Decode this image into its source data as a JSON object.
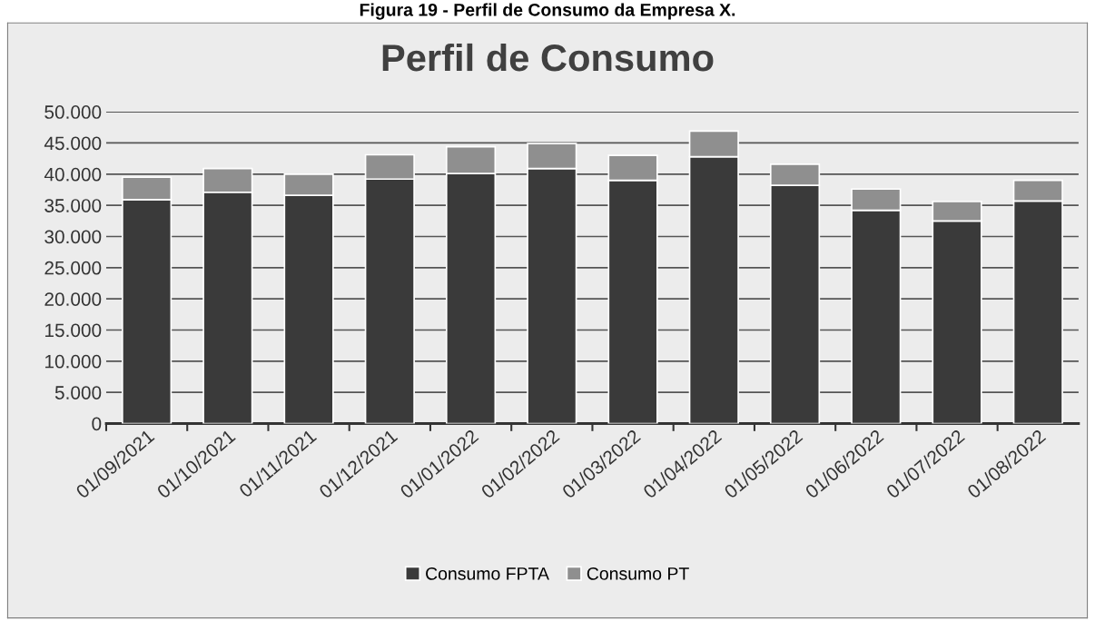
{
  "chart_data": {
    "type": "bar",
    "title": "Perfil de Consumo",
    "stacked": true,
    "annotations": [
      "Figura 19 - Perfil de Consumo da Empresa X."
    ],
    "categories": [
      "01/09/2021",
      "01/10/2021",
      "01/11/2021",
      "01/12/2021",
      "01/01/2022",
      "01/02/2022",
      "01/03/2022",
      "01/04/2022",
      "01/05/2022",
      "01/06/2022",
      "01/07/2022",
      "01/08/2022"
    ],
    "series": [
      {
        "name": "Consumo FPTA",
        "color": "#3a3a3a",
        "values": [
          35900,
          37100,
          36600,
          39200,
          40100,
          40900,
          39000,
          42800,
          38200,
          34200,
          32500,
          35700
        ]
      },
      {
        "name": "Consumo PT",
        "color": "#8f8f8f",
        "values": [
          3600,
          3800,
          3400,
          3900,
          4300,
          4000,
          4000,
          4100,
          3400,
          3400,
          3100,
          3300
        ]
      }
    ],
    "ylim": [
      0,
      50000
    ],
    "yticks": [
      0,
      {
        "value": 5000,
        "label": "5.000"
      },
      {
        "value": 10000,
        "label": "10.000"
      },
      {
        "value": 15000,
        "label": "15.000"
      },
      {
        "value": 20000,
        "label": "20.000"
      },
      {
        "value": 25000,
        "label": "25.000"
      },
      {
        "value": 30000,
        "label": "30.000"
      },
      {
        "value": 35000,
        "label": "35.000"
      },
      {
        "value": 40000,
        "label": "40.000"
      },
      {
        "value": 45000,
        "label": "45.000"
      },
      {
        "value": 50000,
        "label": "50.000"
      }
    ],
    "grid": "y",
    "legend": "bottom"
  }
}
